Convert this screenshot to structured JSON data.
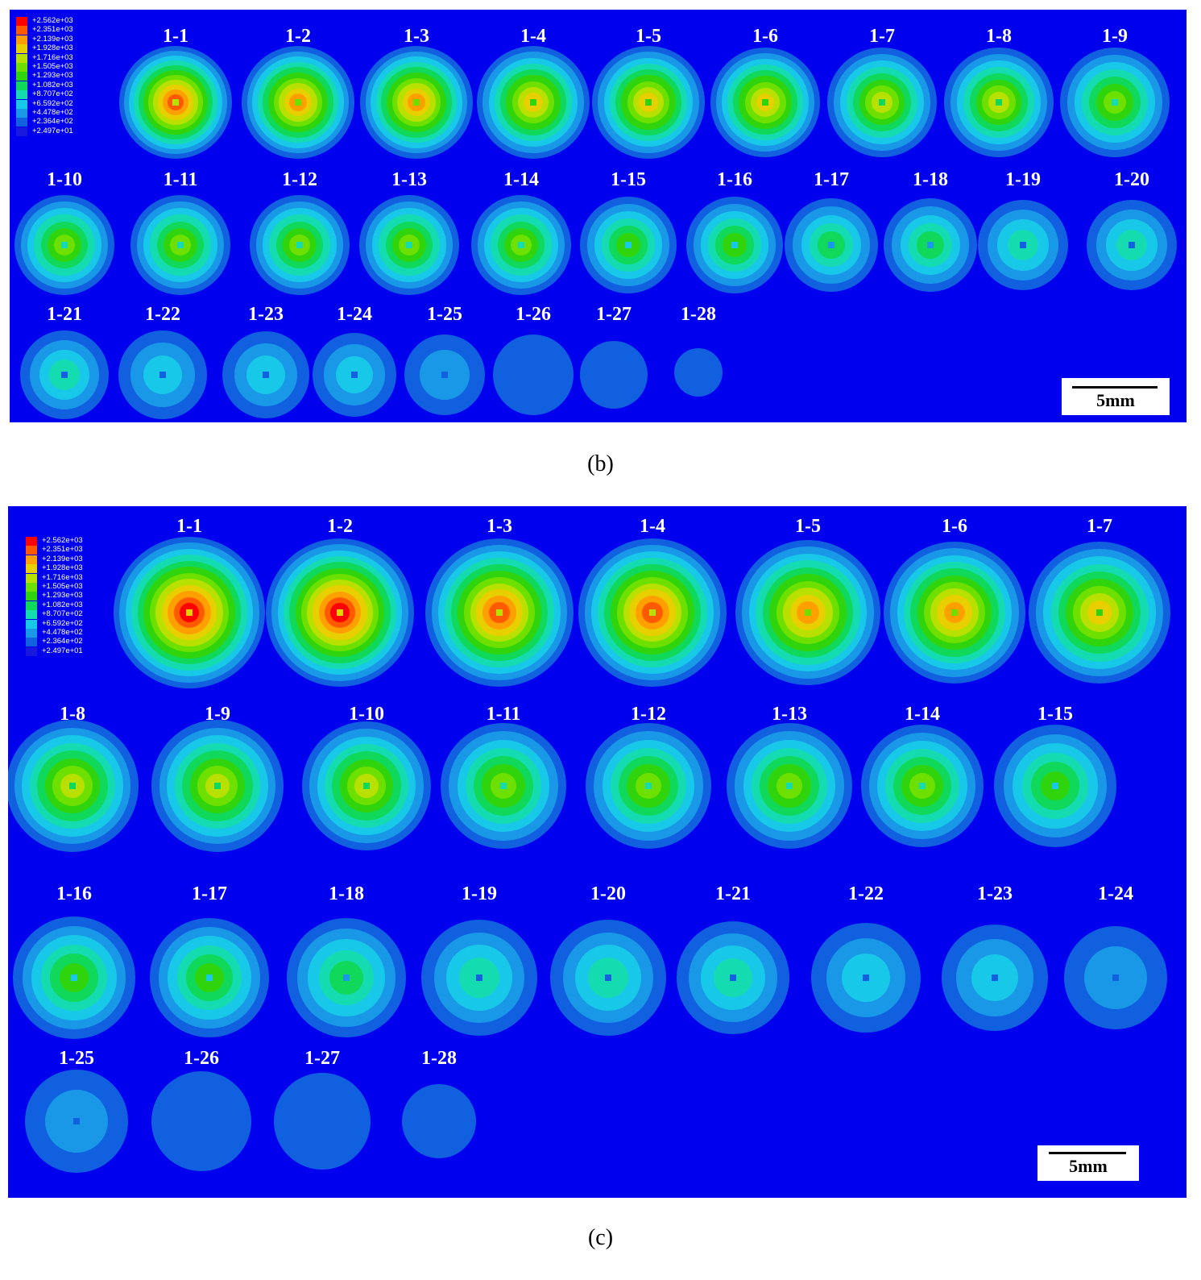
{
  "colors": {
    "background": "#0000ee",
    "levels": [
      "#ff0000",
      "#ff5a00",
      "#ffa000",
      "#e8d000",
      "#b8e000",
      "#6ee000",
      "#2fd40c",
      "#10d85a",
      "#14dcb0",
      "#18c8e8",
      "#1a98e8",
      "#1060e0",
      "#1818e0"
    ]
  },
  "legend": {
    "values": [
      "+2.562e+03",
      "+2.351e+03",
      "+2.139e+03",
      "+1.928e+03",
      "+1.716e+03",
      "+1.505e+03",
      "+1.293e+03",
      "+1.082e+03",
      "+8.707e+02",
      "+6.592e+02",
      "+4.478e+02",
      "+2.364e+02",
      "+2.497e+01"
    ]
  },
  "panel_b": {
    "caption": "(b)",
    "scale_label": "5mm",
    "items": [
      {
        "label": "1-1",
        "peak": 1
      },
      {
        "label": "1-2",
        "peak": 2
      },
      {
        "label": "1-3",
        "peak": 2
      },
      {
        "label": "1-4",
        "peak": 3
      },
      {
        "label": "1-5",
        "peak": 3
      },
      {
        "label": "1-6",
        "peak": 3
      },
      {
        "label": "1-7",
        "peak": 4
      },
      {
        "label": "1-8",
        "peak": 4
      },
      {
        "label": "1-9",
        "peak": 5
      },
      {
        "label": "1-10",
        "peak": 5
      },
      {
        "label": "1-11",
        "peak": 5
      },
      {
        "label": "1-12",
        "peak": 5
      },
      {
        "label": "1-13",
        "peak": 5
      },
      {
        "label": "1-14",
        "peak": 5
      },
      {
        "label": "1-15",
        "peak": 6
      },
      {
        "label": "1-16",
        "peak": 6
      },
      {
        "label": "1-17",
        "peak": 7
      },
      {
        "label": "1-18",
        "peak": 7
      },
      {
        "label": "1-19",
        "peak": 8
      },
      {
        "label": "1-20",
        "peak": 8
      },
      {
        "label": "1-21",
        "peak": 8
      },
      {
        "label": "1-22",
        "peak": 9
      },
      {
        "label": "1-23",
        "peak": 9
      },
      {
        "label": "1-24",
        "peak": 9
      },
      {
        "label": "1-25",
        "peak": 10
      },
      {
        "label": "1-26",
        "peak": 11
      },
      {
        "label": "1-27",
        "peak": 11
      },
      {
        "label": "1-28",
        "peak": 11
      }
    ]
  },
  "panel_c": {
    "caption": "(c)",
    "scale_label": "5mm",
    "items": [
      {
        "label": "1-1",
        "peak": 0
      },
      {
        "label": "1-2",
        "peak": 0
      },
      {
        "label": "1-3",
        "peak": 1
      },
      {
        "label": "1-4",
        "peak": 1
      },
      {
        "label": "1-5",
        "peak": 2
      },
      {
        "label": "1-6",
        "peak": 2
      },
      {
        "label": "1-7",
        "peak": 3
      },
      {
        "label": "1-8",
        "peak": 4
      },
      {
        "label": "1-9",
        "peak": 4
      },
      {
        "label": "1-10",
        "peak": 4
      },
      {
        "label": "1-11",
        "peak": 5
      },
      {
        "label": "1-12",
        "peak": 5
      },
      {
        "label": "1-13",
        "peak": 5
      },
      {
        "label": "1-14",
        "peak": 5
      },
      {
        "label": "1-15",
        "peak": 6
      },
      {
        "label": "1-16",
        "peak": 6
      },
      {
        "label": "1-17",
        "peak": 6
      },
      {
        "label": "1-18",
        "peak": 7
      },
      {
        "label": "1-19",
        "peak": 8
      },
      {
        "label": "1-20",
        "peak": 8
      },
      {
        "label": "1-21",
        "peak": 8
      },
      {
        "label": "1-22",
        "peak": 9
      },
      {
        "label": "1-23",
        "peak": 9
      },
      {
        "label": "1-24",
        "peak": 10
      },
      {
        "label": "1-25",
        "peak": 10
      },
      {
        "label": "1-26",
        "peak": 11
      },
      {
        "label": "1-27",
        "peak": 11
      },
      {
        "label": "1-28",
        "peak": 11
      }
    ]
  }
}
